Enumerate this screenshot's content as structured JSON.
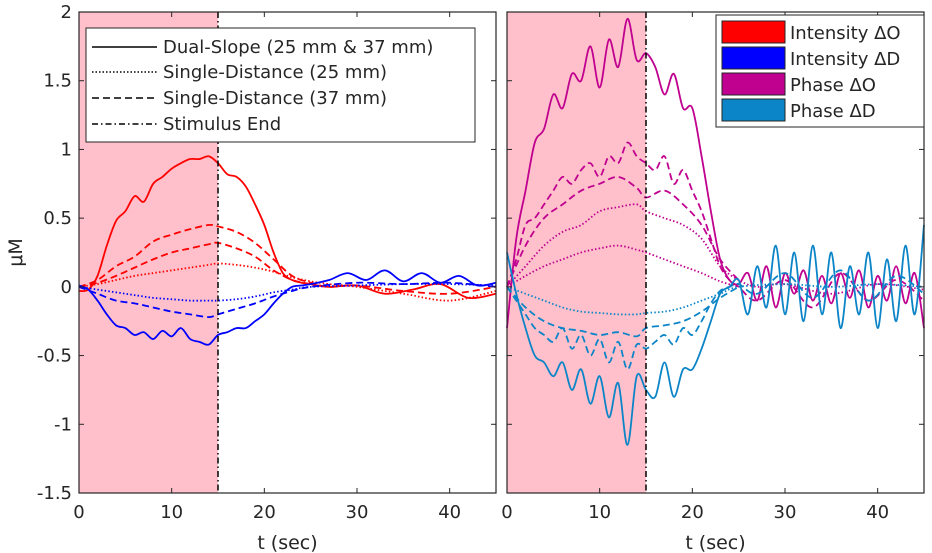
{
  "chart_data": [
    {
      "type": "line",
      "panel": "left",
      "xlabel": "t (sec)",
      "ylabel": "μM",
      "xlim": [
        0,
        45
      ],
      "ylim": [
        -1.5,
        2
      ],
      "xticks": [
        0,
        10,
        20,
        30,
        40
      ],
      "yticks": [
        -1.5,
        -1,
        -0.5,
        0,
        0.5,
        1,
        1.5,
        2
      ],
      "ytick_labels": [
        "-1.5",
        "-1",
        "-0.5",
        "0",
        "0.5",
        "1",
        "1.5",
        "2"
      ],
      "stimulus": {
        "start": 0,
        "end": 15,
        "color": "#ffc0cb"
      },
      "legend": {
        "position": "top-left",
        "entries": [
          {
            "label": "Dual-Slope (25 mm & 37 mm)",
            "style": "solid"
          },
          {
            "label": "Single-Distance (25 mm)",
            "style": "dotted"
          },
          {
            "label": "Single-Distance (37 mm)",
            "style": "dashed"
          },
          {
            "label": "Stimulus End",
            "style": "dashdot"
          }
        ]
      },
      "series": [
        {
          "signal": "Intensity ΔO",
          "method": "Dual-Slope",
          "style": "solid",
          "color": "#ff0000",
          "x": [
            0,
            1,
            2,
            3,
            4,
            5,
            6,
            7,
            8,
            9,
            10,
            11,
            12,
            13,
            14,
            15,
            16,
            17,
            18,
            19,
            20,
            21,
            22,
            23,
            24,
            25,
            27,
            30,
            33,
            36,
            39,
            42,
            45
          ],
          "y": [
            -0.03,
            -0.02,
            0.08,
            0.3,
            0.48,
            0.55,
            0.66,
            0.62,
            0.75,
            0.8,
            0.86,
            0.9,
            0.93,
            0.93,
            0.95,
            0.9,
            0.82,
            0.8,
            0.73,
            0.6,
            0.45,
            0.25,
            0.1,
            0.05,
            0.03,
            0.02,
            0.0,
            0.01,
            -0.05,
            -0.02,
            0.02,
            -0.08,
            -0.05
          ]
        },
        {
          "signal": "Intensity ΔO",
          "method": "Single-Distance (25 mm)",
          "style": "dotted",
          "color": "#ff0000",
          "x": [
            0,
            2,
            4,
            6,
            8,
            10,
            12,
            14,
            15,
            17,
            19,
            21,
            23,
            25,
            27,
            30,
            35,
            40,
            45
          ],
          "y": [
            0,
            0.02,
            0.05,
            0.08,
            0.1,
            0.12,
            0.14,
            0.16,
            0.17,
            0.16,
            0.14,
            0.11,
            0.07,
            0.04,
            0.02,
            0.0,
            -0.05,
            -0.1,
            -0.03
          ]
        },
        {
          "signal": "Intensity ΔO",
          "method": "Single-Distance (37 mm)",
          "style": "dashed",
          "color": "#ff0000",
          "x": [
            0,
            2,
            4,
            6,
            8,
            10,
            12,
            14,
            15,
            17,
            19,
            21,
            23,
            25,
            27,
            30,
            35,
            40,
            45
          ],
          "y": [
            0,
            0.05,
            0.15,
            0.22,
            0.33,
            0.38,
            0.42,
            0.45,
            0.44,
            0.4,
            0.32,
            0.2,
            0.08,
            0.03,
            0.0,
            0.01,
            -0.03,
            -0.05,
            0.0
          ]
        },
        {
          "signal": "Intensity ΔO",
          "method": "Single-Distance (37 mm) second trace",
          "style": "dashed",
          "color": "#ff0000",
          "x": [
            0,
            2,
            4,
            6,
            8,
            10,
            12,
            14,
            15,
            17,
            19,
            21,
            23,
            25
          ],
          "y": [
            0,
            0.03,
            0.08,
            0.14,
            0.2,
            0.25,
            0.28,
            0.31,
            0.32,
            0.28,
            0.22,
            0.12,
            0.05,
            0.02
          ]
        },
        {
          "signal": "Intensity ΔD",
          "method": "Dual-Slope",
          "style": "solid",
          "color": "#0000ff",
          "x": [
            0,
            1,
            2,
            3,
            4,
            5,
            6,
            7,
            8,
            9,
            10,
            11,
            12,
            13,
            14,
            15,
            16,
            17,
            18,
            19,
            20,
            21,
            22,
            23,
            24,
            25,
            27,
            29,
            31,
            33,
            35,
            37,
            39,
            41,
            43,
            45
          ],
          "y": [
            0.01,
            -0.02,
            -0.1,
            -0.2,
            -0.28,
            -0.3,
            -0.35,
            -0.33,
            -0.38,
            -0.32,
            -0.36,
            -0.3,
            -0.38,
            -0.4,
            -0.42,
            -0.35,
            -0.33,
            -0.3,
            -0.3,
            -0.25,
            -0.2,
            -0.12,
            -0.05,
            0.0,
            0.01,
            0.02,
            0.05,
            0.1,
            0.05,
            0.12,
            0.04,
            0.1,
            0.03,
            0.08,
            0.01,
            0.03
          ]
        },
        {
          "signal": "Intensity ΔD",
          "method": "Single-Distance (25 mm)",
          "style": "dotted",
          "color": "#0000ff",
          "x": [
            0,
            2,
            4,
            6,
            8,
            10,
            12,
            14,
            15,
            17,
            19,
            21,
            23,
            25,
            30,
            35,
            40,
            45
          ],
          "y": [
            0,
            -0.02,
            -0.04,
            -0.06,
            -0.08,
            -0.09,
            -0.1,
            -0.1,
            -0.1,
            -0.09,
            -0.07,
            -0.04,
            -0.02,
            0.0,
            0.01,
            0.02,
            0.02,
            0.01
          ]
        },
        {
          "signal": "Intensity ΔD",
          "method": "Single-Distance (37 mm)",
          "style": "dashed",
          "color": "#0000ff",
          "x": [
            0,
            2,
            4,
            6,
            8,
            10,
            12,
            14,
            15,
            17,
            19,
            21,
            23,
            25,
            30,
            35,
            40,
            45
          ],
          "y": [
            0,
            -0.05,
            -0.1,
            -0.12,
            -0.15,
            -0.18,
            -0.2,
            -0.22,
            -0.2,
            -0.16,
            -0.12,
            -0.07,
            -0.03,
            0.0,
            0.03,
            0.02,
            0.03,
            0.0
          ]
        }
      ]
    },
    {
      "type": "line",
      "panel": "right",
      "xlabel": "t (sec)",
      "xlim": [
        0,
        45
      ],
      "ylim": [
        -1.5,
        2
      ],
      "xticks": [
        0,
        10,
        20,
        30,
        40
      ],
      "stimulus": {
        "start": 0,
        "end": 15,
        "color": "#ffc0cb"
      },
      "legend": {
        "position": "top-right",
        "entries": [
          {
            "label": "Intensity ΔO",
            "color": "#ff0000"
          },
          {
            "label": "Intensity ΔD",
            "color": "#0000ff"
          },
          {
            "label": "Phase ΔO",
            "color": "#c0008f"
          },
          {
            "label": "Phase ΔD",
            "color": "#0b85c7"
          }
        ]
      },
      "series": [
        {
          "signal": "Phase ΔO",
          "method": "Dual-Slope",
          "style": "solid",
          "color": "#c0008f",
          "x": [
            0,
            1,
            2,
            3,
            4,
            5,
            6,
            7,
            8,
            9,
            10,
            11,
            12,
            13,
            14,
            15,
            16,
            17,
            18,
            19,
            20,
            21,
            22,
            23,
            24,
            25,
            26,
            27,
            28,
            29,
            30,
            31,
            32,
            33,
            34,
            35,
            36,
            37,
            38,
            39,
            40,
            41,
            42,
            43,
            44,
            45
          ],
          "y": [
            -0.3,
            0.35,
            0.7,
            1.05,
            1.15,
            1.4,
            1.3,
            1.55,
            1.5,
            1.75,
            1.45,
            1.8,
            1.6,
            1.95,
            1.65,
            1.7,
            1.6,
            1.4,
            1.55,
            1.3,
            1.3,
            0.95,
            0.55,
            0.2,
            0.05,
            0.02,
            0.1,
            -0.1,
            0.15,
            -0.15,
            0.1,
            -0.05,
            0.12,
            -0.1,
            0.08,
            -0.12,
            0.1,
            -0.08,
            0.12,
            -0.15,
            0.08,
            -0.1,
            0.15,
            -0.12,
            0.1,
            -0.3
          ]
        },
        {
          "signal": "Phase ΔO",
          "method": "Single-Distance (25 mm)",
          "style": "dotted",
          "color": "#c0008f",
          "x": [
            0,
            2,
            4,
            6,
            8,
            10,
            12,
            14,
            15,
            17,
            19,
            21,
            23,
            25,
            27,
            30,
            35,
            40,
            45
          ],
          "y": [
            0,
            0.15,
            0.3,
            0.4,
            0.45,
            0.55,
            0.58,
            0.6,
            0.55,
            0.5,
            0.45,
            0.35,
            0.15,
            0.05,
            0.0,
            0.02,
            -0.05,
            0.02,
            -0.02
          ]
        },
        {
          "signal": "Phase ΔO",
          "method": "Single-Distance (25 mm) second trace",
          "style": "dotted",
          "color": "#c0008f",
          "x": [
            0,
            2,
            4,
            6,
            8,
            10,
            12,
            14,
            15,
            17,
            19,
            21,
            23,
            25
          ],
          "y": [
            0,
            0.08,
            0.15,
            0.2,
            0.25,
            0.28,
            0.3,
            0.27,
            0.25,
            0.2,
            0.15,
            0.1,
            0.04,
            0.0
          ]
        },
        {
          "signal": "Phase ΔO",
          "method": "Single-Distance (37 mm)",
          "style": "dashed",
          "color": "#c0008f",
          "x": [
            0,
            1,
            2,
            3,
            4,
            5,
            6,
            7,
            8,
            9,
            10,
            11,
            12,
            13,
            14,
            15,
            16,
            17,
            18,
            19,
            20,
            21,
            22,
            23,
            24,
            25,
            27,
            30,
            33,
            36,
            39,
            42,
            45
          ],
          "y": [
            0,
            0.2,
            0.45,
            0.5,
            0.6,
            0.7,
            0.8,
            0.75,
            0.85,
            0.9,
            0.8,
            0.95,
            0.9,
            1.05,
            0.95,
            0.9,
            0.85,
            0.95,
            0.75,
            0.85,
            0.7,
            0.55,
            0.35,
            0.15,
            0.05,
            0.0,
            -0.1,
            0.05,
            -0.15,
            0.1,
            -0.1,
            0.05,
            -0.1
          ]
        },
        {
          "signal": "Phase ΔO",
          "method": "Single-Distance (37 mm) second trace",
          "style": "dashed",
          "color": "#c0008f",
          "x": [
            0,
            2,
            4,
            6,
            8,
            10,
            12,
            14,
            15,
            17,
            19,
            21,
            23,
            25
          ],
          "y": [
            0,
            0.3,
            0.5,
            0.6,
            0.7,
            0.75,
            0.8,
            0.72,
            0.65,
            0.7,
            0.6,
            0.45,
            0.2,
            0.05
          ]
        },
        {
          "signal": "Phase ΔD",
          "method": "Dual-Slope",
          "style": "solid",
          "color": "#0b85c7",
          "x": [
            0,
            1,
            2,
            3,
            4,
            5,
            6,
            7,
            8,
            9,
            10,
            11,
            12,
            13,
            14,
            15,
            16,
            17,
            18,
            19,
            20,
            21,
            22,
            23,
            24,
            25,
            26,
            27,
            28,
            29,
            30,
            31,
            32,
            33,
            34,
            35,
            36,
            37,
            38,
            39,
            40,
            41,
            42,
            43,
            44,
            45
          ],
          "y": [
            0.25,
            -0.05,
            -0.3,
            -0.5,
            -0.55,
            -0.65,
            -0.55,
            -0.75,
            -0.6,
            -0.85,
            -0.65,
            -0.95,
            -0.7,
            -1.15,
            -0.65,
            -0.75,
            -0.8,
            -0.55,
            -0.8,
            -0.6,
            -0.6,
            -0.45,
            -0.25,
            -0.05,
            0.0,
            0.05,
            -0.2,
            0.15,
            -0.15,
            0.3,
            -0.2,
            0.25,
            -0.25,
            0.3,
            -0.2,
            0.25,
            -0.3,
            0.15,
            -0.2,
            0.25,
            -0.3,
            0.2,
            -0.25,
            0.3,
            -0.2,
            0.45
          ]
        },
        {
          "signal": "Phase ΔD",
          "method": "Single-Distance (25 mm)",
          "style": "dotted",
          "color": "#0b85c7",
          "x": [
            0,
            2,
            4,
            6,
            8,
            10,
            12,
            14,
            15,
            17,
            19,
            21,
            23,
            25,
            30,
            35,
            40,
            45
          ],
          "y": [
            0,
            -0.05,
            -0.1,
            -0.15,
            -0.18,
            -0.19,
            -0.2,
            -0.2,
            -0.19,
            -0.18,
            -0.15,
            -0.1,
            -0.05,
            0.0,
            0.02,
            0.0,
            0.02,
            0.0
          ]
        },
        {
          "signal": "Phase ΔD",
          "method": "Single-Distance (37 mm)",
          "style": "dashed",
          "color": "#0b85c7",
          "x": [
            0,
            1,
            2,
            3,
            4,
            5,
            6,
            7,
            8,
            9,
            10,
            11,
            12,
            13,
            14,
            15,
            16,
            17,
            18,
            19,
            20,
            21,
            22,
            23,
            24,
            25,
            27,
            30,
            33,
            36,
            39,
            42,
            45
          ],
          "y": [
            0,
            -0.1,
            -0.2,
            -0.3,
            -0.35,
            -0.4,
            -0.3,
            -0.45,
            -0.35,
            -0.5,
            -0.38,
            -0.55,
            -0.4,
            -0.6,
            -0.42,
            -0.45,
            -0.4,
            -0.35,
            -0.42,
            -0.3,
            -0.35,
            -0.25,
            -0.12,
            -0.03,
            0.0,
            0.02,
            -0.05,
            0.1,
            -0.08,
            0.12,
            -0.1,
            0.08,
            -0.05
          ]
        },
        {
          "signal": "Phase ΔD",
          "method": "Single-Distance (37 mm) second trace",
          "style": "dashed",
          "color": "#0b85c7",
          "x": [
            0,
            2,
            4,
            6,
            8,
            10,
            12,
            14,
            15,
            17,
            19,
            21,
            23,
            25
          ],
          "y": [
            0,
            -0.15,
            -0.25,
            -0.3,
            -0.32,
            -0.35,
            -0.33,
            -0.36,
            -0.3,
            -0.28,
            -0.25,
            -0.18,
            -0.08,
            0.0
          ]
        }
      ]
    }
  ]
}
